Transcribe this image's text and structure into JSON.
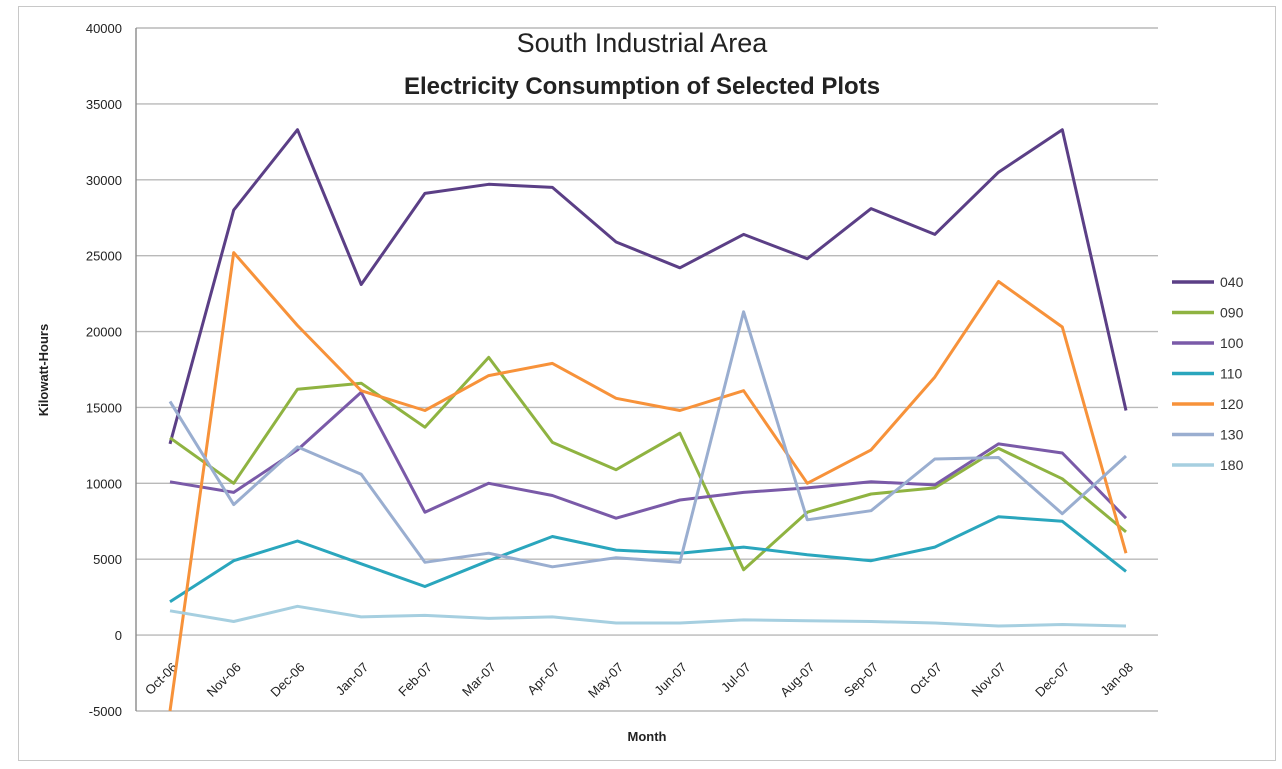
{
  "chart_data": {
    "type": "line",
    "title": "South Industrial Area",
    "subtitle": "Electricity Consumption of Selected Plots",
    "xlabel": "Month",
    "ylabel": "Kilowatt-Hours",
    "ylim": [
      -5000,
      40000
    ],
    "yticks": [
      -5000,
      0,
      5000,
      10000,
      15000,
      20000,
      25000,
      30000,
      35000,
      40000
    ],
    "ytick_labels": [
      "-5000",
      "0",
      "5000",
      "10000",
      "15000",
      "20000",
      "25000",
      "30000",
      "35000",
      "40000"
    ],
    "grid": "horizontal",
    "legend_position": "right",
    "categories": [
      "Oct-06",
      "Nov-06",
      "Dec-06",
      "Jan-07",
      "Feb-07",
      "Mar-07",
      "Apr-07",
      "May-07",
      "Jun-07",
      "Jul-07",
      "Aug-07",
      "Sep-07",
      "Oct-07",
      "Nov-07",
      "Dec-07",
      "Jan-08"
    ],
    "series": [
      {
        "name": "040",
        "color": "#5b3f86",
        "values": [
          12600,
          28000,
          33300,
          23100,
          29100,
          29700,
          29500,
          25900,
          24200,
          26400,
          24800,
          28100,
          26400,
          30500,
          33300,
          14800
        ]
      },
      {
        "name": "090",
        "color": "#8fb341",
        "values": [
          13000,
          10000,
          16200,
          16600,
          13700,
          18300,
          12700,
          10900,
          13300,
          4300,
          8100,
          9300,
          9700,
          12300,
          10300,
          6800
        ]
      },
      {
        "name": "100",
        "color": "#7a5aa8",
        "values": [
          10100,
          9400,
          12200,
          16000,
          8100,
          10000,
          9200,
          7700,
          8900,
          9400,
          9700,
          10100,
          9900,
          12600,
          12000,
          7700
        ]
      },
      {
        "name": "110",
        "color": "#2aa6bd",
        "values": [
          2200,
          4900,
          6200,
          4700,
          3200,
          4900,
          6500,
          5600,
          5400,
          5800,
          5300,
          4900,
          5800,
          7800,
          7500,
          4200
        ]
      },
      {
        "name": "120",
        "color": "#f7923a",
        "values": [
          -5000,
          25200,
          20400,
          16100,
          14800,
          17100,
          17900,
          15600,
          14800,
          16100,
          10000,
          12200,
          17000,
          23300,
          20300,
          5400
        ]
      },
      {
        "name": "130",
        "color": "#9aaed0",
        "values": [
          15400,
          8600,
          12400,
          10600,
          4800,
          5400,
          4500,
          5100,
          4800,
          21300,
          7600,
          8200,
          11600,
          11700,
          8000,
          11800
        ]
      },
      {
        "name": "180",
        "color": "#a6cfe0",
        "values": [
          1600,
          900,
          1900,
          1200,
          1300,
          1100,
          1200,
          800,
          800,
          1000,
          950,
          900,
          800,
          600,
          700,
          600
        ]
      }
    ]
  }
}
